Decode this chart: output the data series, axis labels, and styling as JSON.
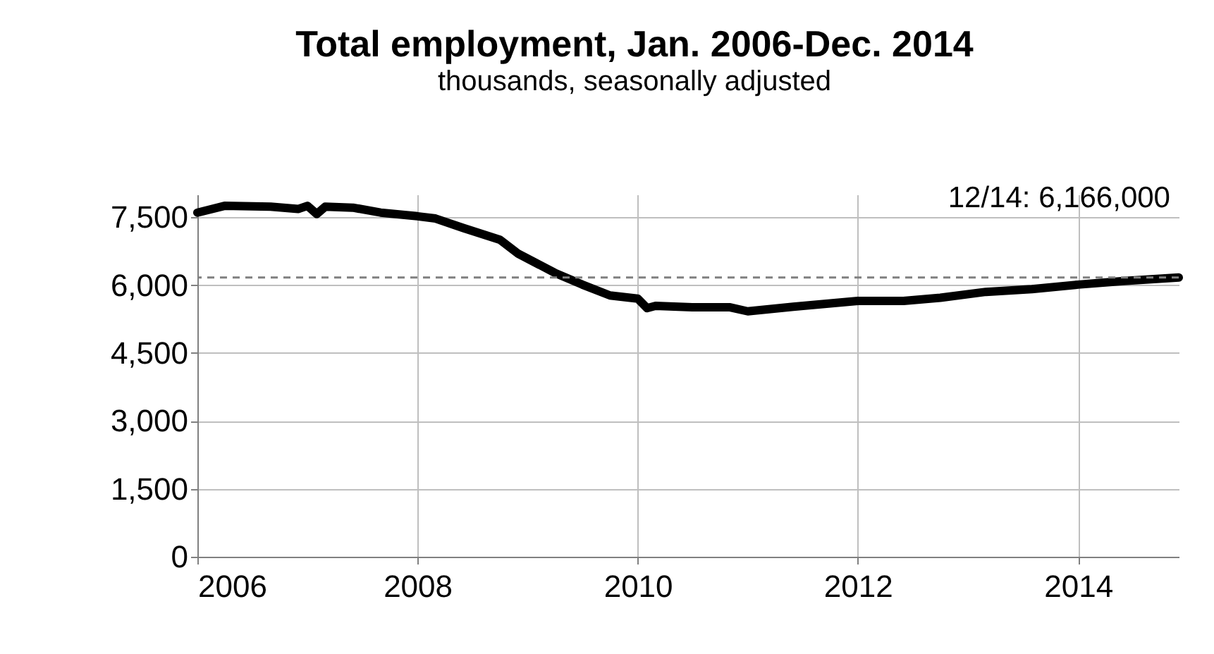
{
  "chart_data": {
    "type": "line",
    "title": "Total employment, Jan. 2006-Dec. 2014",
    "subtitle": "thousands, seasonally adjusted",
    "x": [
      "2006-01",
      "2006-04",
      "2006-09",
      "2006-12",
      "2007-01",
      "2007-02",
      "2007-03",
      "2007-06",
      "2007-09",
      "2008-01",
      "2008-03",
      "2008-06",
      "2008-10",
      "2008-12",
      "2009-04",
      "2009-07",
      "2009-10",
      "2010-01",
      "2010-02",
      "2010-03",
      "2010-07",
      "2010-11",
      "2011-01",
      "2011-06",
      "2012-01",
      "2012-06",
      "2012-10",
      "2013-03",
      "2013-08",
      "2014-01",
      "2014-06",
      "2014-12"
    ],
    "series": [
      {
        "color": "#000000",
        "values": [
          7600,
          7750,
          7730,
          7680,
          7750,
          7570,
          7730,
          7710,
          7600,
          7520,
          7470,
          7260,
          7000,
          6690,
          6270,
          6010,
          5770,
          5700,
          5490,
          5540,
          5510,
          5510,
          5420,
          5520,
          5650,
          5650,
          5720,
          5850,
          5910,
          6010,
          6090,
          6166
        ]
      }
    ],
    "xlim": [
      "2006-01",
      "2014-12"
    ],
    "xticks": [
      "2006",
      "2008",
      "2010",
      "2012",
      "2014"
    ],
    "ylim": [
      0,
      8000
    ],
    "yticks": [
      {
        "value": 0,
        "label": "0"
      },
      {
        "value": 1500,
        "label": "1,500"
      },
      {
        "value": 3000,
        "label": "3,000"
      },
      {
        "value": 4500,
        "label": "4,500"
      },
      {
        "value": 6000,
        "label": "6,000"
      },
      {
        "value": 7500,
        "label": "7,500"
      }
    ],
    "grid": true,
    "line_style": "solid",
    "ref_lines": [
      {
        "axis": "y",
        "value": 6166,
        "color": "#808080",
        "line_style": "dashed"
      }
    ],
    "annotations": [
      {
        "text": "12/14: 6,166,000",
        "x": "2014-12",
        "y": 6166
      }
    ]
  }
}
